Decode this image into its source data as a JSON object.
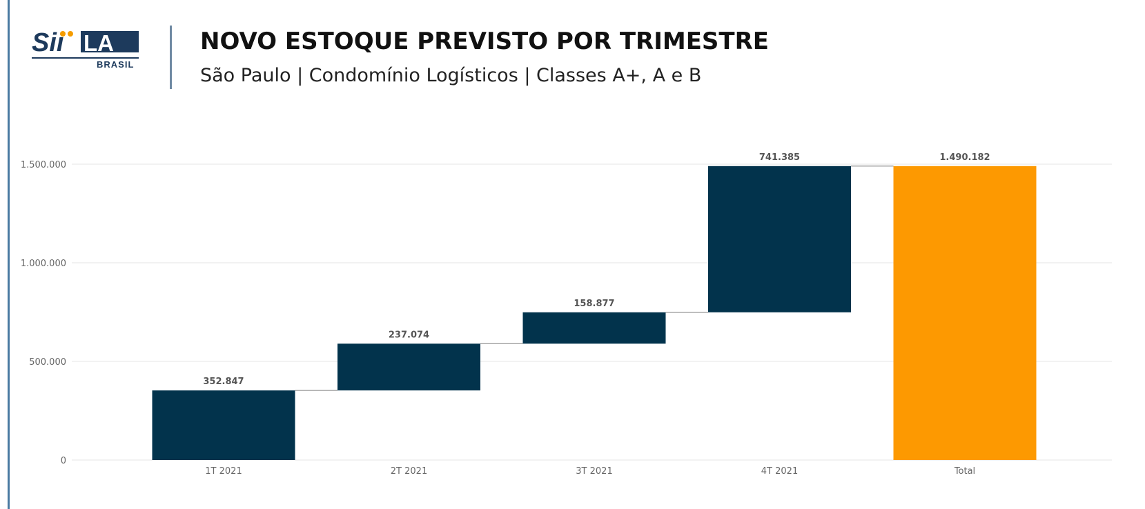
{
  "header": {
    "title": "NOVO ESTOQUE PREVISTO POR TRIMESTRE",
    "subtitle": "São Paulo | Condomínio Logísticos | Classes A+, A e B"
  },
  "logo": {
    "name": "SiiLA",
    "sub": "BRASIL",
    "colors": {
      "navy": "#1d3a5c",
      "orange": "#f59c00"
    }
  },
  "chart_data": {
    "type": "waterfall",
    "categories": [
      "1T 2021",
      "2T 2021",
      "3T 2021",
      "4T 2021",
      "Total"
    ],
    "values": [
      352847,
      237074,
      158877,
      741385,
      1490182
    ],
    "labels": [
      "352.847",
      "237.074",
      "158.877",
      "741.385",
      "1.490.182"
    ],
    "yticks": [
      0,
      500000,
      1000000,
      1500000
    ],
    "ytick_labels": [
      "0",
      "500.000",
      "1.000.000",
      "1.500.000"
    ],
    "ylim": [
      0,
      1500000
    ],
    "grid": true,
    "colors": {
      "increase": "#02334c",
      "total": "#fd9901",
      "connector": "#a6a6a6",
      "grid": "#e6e6e6"
    }
  }
}
